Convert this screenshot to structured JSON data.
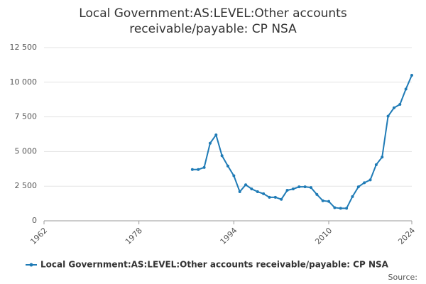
{
  "chart_data": {
    "type": "line",
    "title": "Local Government:AS:LEVEL:Other accounts receivable/payable: CP NSA",
    "x": [
      1987,
      1988,
      1989,
      1990,
      1991,
      1992,
      1993,
      1994,
      1995,
      1996,
      1997,
      1998,
      1999,
      2000,
      2001,
      2002,
      2003,
      2004,
      2005,
      2006,
      2007,
      2008,
      2009,
      2010,
      2011,
      2012,
      2013,
      2014,
      2015,
      2016,
      2017,
      2018,
      2019,
      2020,
      2021,
      2022,
      2023,
      2024
    ],
    "series": [
      {
        "name": "Local Government:AS:LEVEL:Other accounts receivable/payable: CP NSA",
        "color": "#1f7bb6",
        "values": [
          3700,
          3700,
          3850,
          5600,
          6200,
          4700,
          3950,
          3250,
          2100,
          2600,
          2300,
          2100,
          1950,
          1700,
          1700,
          1550,
          2200,
          2300,
          2450,
          2450,
          2400,
          1900,
          1450,
          1400,
          950,
          900,
          900,
          1750,
          2450,
          2750,
          2950,
          4050,
          4600,
          7550,
          8150,
          8400,
          9500,
          10500
        ]
      }
    ],
    "xlim": [
      1962,
      2024
    ],
    "xticks": [
      1962,
      1978,
      1994,
      2010,
      2024
    ],
    "ylim": [
      0,
      12500
    ],
    "yticks": [
      0,
      {
        "value": 2500,
        "label": "2 500"
      },
      {
        "value": 5000,
        "label": "5 000"
      },
      {
        "value": 7500,
        "label": "7 500"
      },
      {
        "value": 10000,
        "label": "10 000"
      },
      {
        "value": 12500,
        "label": "12 500"
      }
    ],
    "grid": true,
    "source": "Source:"
  }
}
